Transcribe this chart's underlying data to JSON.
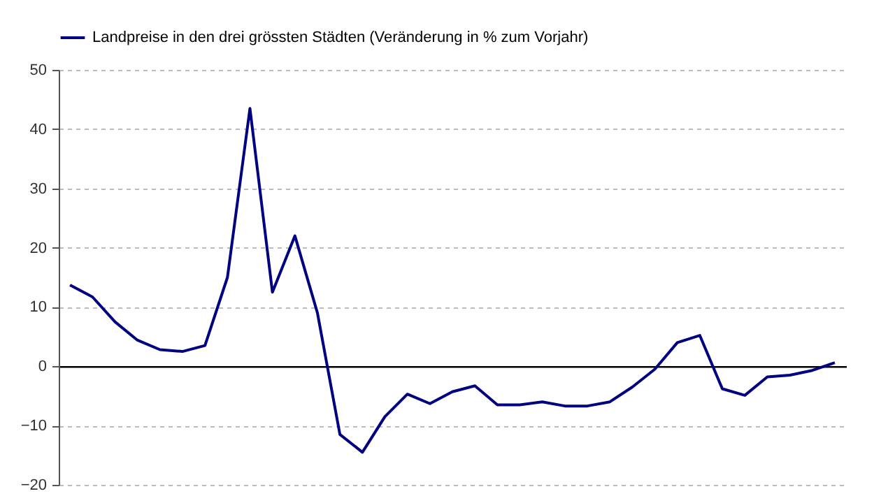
{
  "chart_data": {
    "type": "line",
    "categories": [
      null,
      null,
      null,
      null,
      null,
      null,
      null,
      null,
      null,
      null,
      null,
      null,
      null,
      null,
      null,
      null,
      null,
      null,
      null,
      null,
      null,
      null,
      null,
      null,
      null,
      null,
      null,
      null,
      null,
      null,
      null,
      null,
      null,
      null,
      null
    ],
    "series": [
      {
        "name": "Landpreise in den drei grössten Städten (Veränderung in % zum Vorjahr)",
        "color": "#000080",
        "values": [
          13.7,
          11.7,
          7.5,
          4.4,
          2.8,
          2.5,
          3.5,
          15,
          43.5,
          12.5,
          22,
          9,
          -11.5,
          -14.5,
          -8.5,
          -4.7,
          -6.3,
          -4.3,
          -3.3,
          -6.5,
          -6.5,
          -6,
          -6.7,
          -6.7,
          -6,
          -3.5,
          -0.5,
          4,
          5.2,
          -3.8,
          -4.9,
          -1.8,
          -1.5,
          -0.7,
          0.6
        ]
      }
    ],
    "ylim": [
      -20,
      50
    ],
    "yticks": [
      -20,
      -10,
      0,
      10,
      20,
      30,
      40,
      50
    ],
    "grid": "y",
    "legend": "top left",
    "marker": "none",
    "line_style": "solid"
  }
}
